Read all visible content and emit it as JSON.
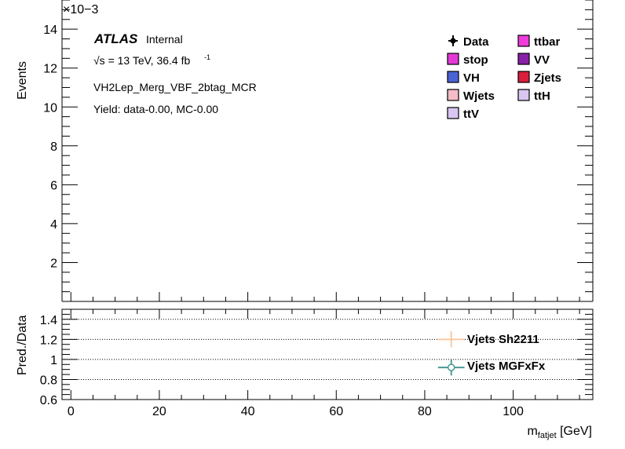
{
  "chart_data": [
    {
      "type": "bar",
      "panel": "main",
      "ylabel": "Events",
      "y_exponent": "×10−3",
      "ylim": [
        0,
        0.0155
      ],
      "y_ticks": [
        0.002,
        0.004,
        0.006,
        0.008,
        0.01,
        0.012,
        0.014
      ],
      "y_tick_labels": [
        "2",
        "4",
        "6",
        "8",
        "10",
        "12",
        "14"
      ],
      "xlim": [
        -2,
        118
      ],
      "series": [],
      "annotations": {
        "atlas": "ATLAS",
        "internal": "Internal",
        "energy": "√s = 13 TeV, 36.4 fb",
        "lumi_sup": "-1",
        "region": "VH2Lep_Merg_VBF_2btag_MCR",
        "yield": "Yield: data-0.00, MC-0.00"
      },
      "legend": {
        "placement": "top-right",
        "entries": [
          {
            "label": "Data",
            "marker": "point",
            "color": "#000000"
          },
          {
            "label": "ttbar",
            "marker": "box",
            "color": "#f03cdc"
          },
          {
            "label": "stop",
            "marker": "box",
            "color": "#e33ad7"
          },
          {
            "label": "VV",
            "marker": "box",
            "color": "#8a1fa8"
          },
          {
            "label": "VH",
            "marker": "box",
            "color": "#4a63d4"
          },
          {
            "label": "Zjets",
            "marker": "box",
            "color": "#d81f3d"
          },
          {
            "label": "Wjets",
            "marker": "box",
            "color": "#f4bcc6"
          },
          {
            "label": "ttH",
            "marker": "box",
            "color": "#d9c6f2"
          },
          {
            "label": "ttV",
            "marker": "box",
            "color": "#d9c6f2"
          }
        ]
      }
    },
    {
      "type": "scatter",
      "panel": "ratio",
      "ylabel": "Pred./Data",
      "xlabel": "m",
      "xlabel_sub": "fatjet",
      "xlabel_unit": " [GeV]",
      "xlim": [
        -2,
        118
      ],
      "ylim": [
        0.6,
        1.5
      ],
      "x_ticks": [
        0,
        20,
        40,
        60,
        80,
        100
      ],
      "x_tick_labels": [
        "0",
        "20",
        "40",
        "60",
        "80",
        "100"
      ],
      "y_ticks": [
        0.6,
        0.8,
        1,
        1.2,
        1.4
      ],
      "y_tick_labels": [
        "0.6",
        "0.8",
        "1",
        "1.2",
        "1.4"
      ],
      "grid_lines": [
        0.8,
        1.0,
        1.2,
        1.4
      ],
      "series": [
        {
          "name": "Vjets Sh2211",
          "color": "#f8c9a0",
          "x": [
            86
          ],
          "y": [
            1.2
          ],
          "xerr": 3,
          "yerr": 0.08,
          "marker": "cross"
        },
        {
          "name": "Vjets MGFxFx",
          "color": "#4a9a94",
          "x": [
            86
          ],
          "y": [
            0.92
          ],
          "xerr": 3,
          "yerr": 0.08,
          "marker": "open-circle"
        }
      ]
    }
  ]
}
